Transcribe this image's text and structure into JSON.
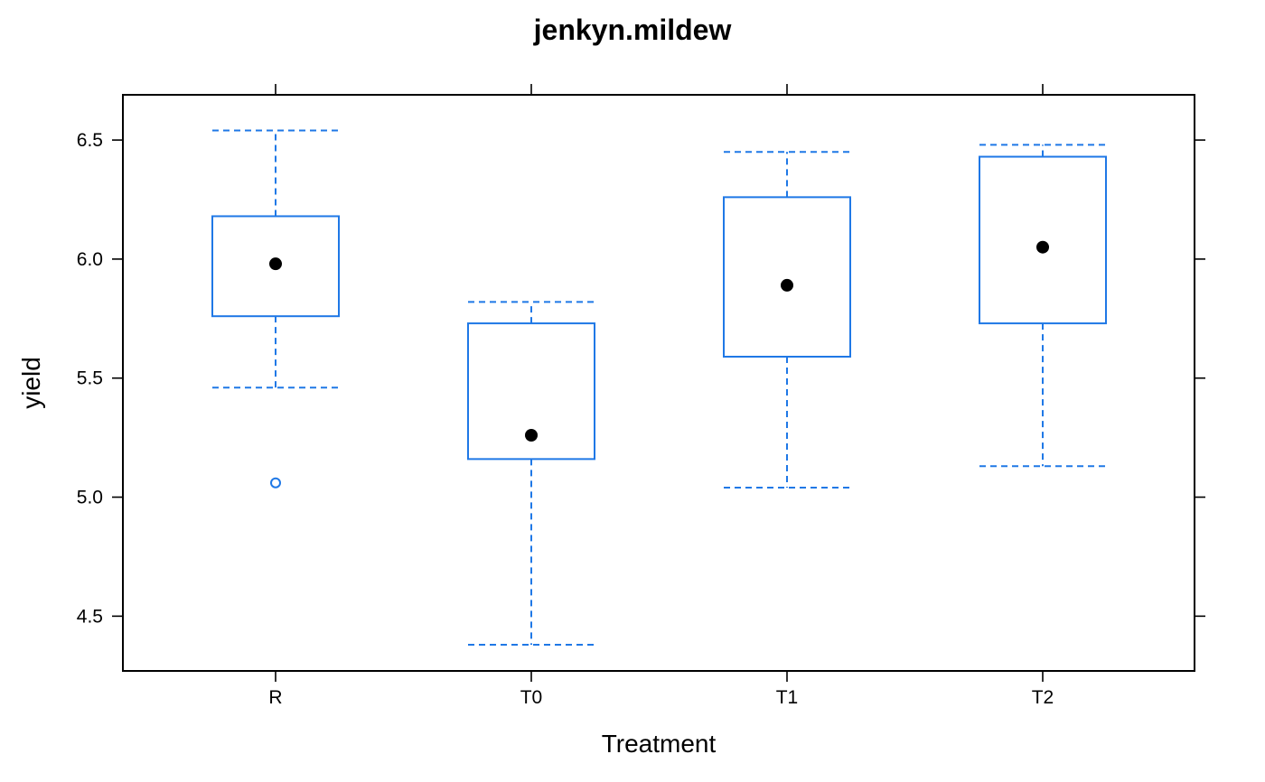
{
  "chart_data": {
    "type": "boxplot",
    "title": "jenkyn.mildew",
    "xlabel": "Treatment",
    "ylabel": "yield",
    "ylim": [
      4.27,
      6.69
    ],
    "yticks": [
      4.5,
      5.0,
      5.5,
      6.0,
      6.5
    ],
    "ytick_labels": [
      "4.5",
      "5.0",
      "5.5",
      "6.0",
      "6.5"
    ],
    "grid": false,
    "colors": {
      "box": "#1f78e6",
      "median": "#000000",
      "frame": "#000000"
    },
    "categories": [
      "R",
      "T0",
      "T1",
      "T2"
    ],
    "boxes": [
      {
        "category": "R",
        "whisker_low": 5.46,
        "q1": 5.76,
        "median": 5.98,
        "q3": 6.18,
        "whisker_high": 6.54,
        "outliers": [
          5.06
        ]
      },
      {
        "category": "T0",
        "whisker_low": 4.38,
        "q1": 5.16,
        "median": 5.26,
        "q3": 5.73,
        "whisker_high": 5.82,
        "outliers": []
      },
      {
        "category": "T1",
        "whisker_low": 5.04,
        "q1": 5.59,
        "median": 5.89,
        "q3": 6.26,
        "whisker_high": 6.45,
        "outliers": []
      },
      {
        "category": "T2",
        "whisker_low": 5.13,
        "q1": 5.73,
        "median": 6.05,
        "q3": 6.43,
        "whisker_high": 6.48,
        "outliers": []
      }
    ]
  }
}
